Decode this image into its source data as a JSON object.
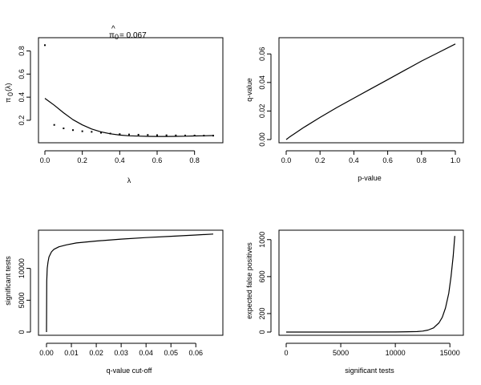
{
  "chart_data": [
    {
      "id": "pi0",
      "type": "scatter+line",
      "title": "π̂0 = 0.067",
      "title_parts": {
        "symbol": "π",
        "hat": "^",
        "subscript": "0",
        "value_text": "= 0.067"
      },
      "xlabel": "λ",
      "ylabel": "π 0(λ)",
      "ylabel_parts": {
        "base": "π",
        "subscript": "0",
        "suffix": "(λ)"
      },
      "xlim": [
        0,
        0.9
      ],
      "ylim": [
        0.04,
        0.88
      ],
      "xticks": [
        0,
        0.2,
        0.4,
        0.6,
        0.8
      ],
      "xtick_labels": [
        "0.0",
        "0.2",
        "0.4",
        "0.6",
        "0.8"
      ],
      "yticks": [
        0.2,
        0.4,
        0.6,
        0.8
      ],
      "ytick_labels": [
        "0.2",
        "0.4",
        "0.6",
        "0.8"
      ],
      "series": [
        {
          "name": "pi0 estimates",
          "kind": "points",
          "x": [
            0.0,
            0.05,
            0.1,
            0.15,
            0.2,
            0.25,
            0.3,
            0.35,
            0.4,
            0.45,
            0.5,
            0.55,
            0.6,
            0.65,
            0.7,
            0.75,
            0.8,
            0.85,
            0.9
          ],
          "y": [
            0.85,
            0.16,
            0.13,
            0.115,
            0.105,
            0.1,
            0.092,
            0.085,
            0.08,
            0.077,
            0.075,
            0.073,
            0.071,
            0.07,
            0.069,
            0.068,
            0.068,
            0.067,
            0.067
          ]
        },
        {
          "name": "smoother",
          "kind": "line",
          "x": [
            0.0,
            0.05,
            0.1,
            0.15,
            0.2,
            0.25,
            0.3,
            0.35,
            0.4,
            0.45,
            0.5,
            0.55,
            0.6,
            0.65,
            0.7,
            0.75,
            0.8,
            0.85,
            0.9
          ],
          "y": [
            0.39,
            0.33,
            0.265,
            0.205,
            0.16,
            0.125,
            0.1,
            0.083,
            0.072,
            0.066,
            0.063,
            0.061,
            0.06,
            0.06,
            0.061,
            0.062,
            0.064,
            0.066,
            0.068
          ]
        }
      ]
    },
    {
      "id": "qvalue-vs-pvalue",
      "type": "line",
      "title": "",
      "xlabel": "p-value",
      "ylabel": "q-value",
      "xlim": [
        0,
        1
      ],
      "ylim": [
        0,
        0.068
      ],
      "xticks": [
        0,
        0.2,
        0.4,
        0.6,
        0.8,
        1.0
      ],
      "xtick_labels": [
        "0.0",
        "0.2",
        "0.4",
        "0.6",
        "0.8",
        "1.0"
      ],
      "yticks": [
        0,
        0.02,
        0.04,
        0.06
      ],
      "ytick_labels": [
        "0.00",
        "0.02",
        "0.04",
        "0.06"
      ],
      "series": [
        {
          "name": "q-value",
          "x": [
            0,
            0.02,
            0.05,
            0.1,
            0.2,
            0.3,
            0.4,
            0.5,
            0.6,
            0.7,
            0.8,
            0.9,
            1.0
          ],
          "y": [
            0,
            0.0018,
            0.0042,
            0.0082,
            0.0155,
            0.0225,
            0.029,
            0.0355,
            0.042,
            0.0485,
            0.055,
            0.061,
            0.067
          ]
        }
      ]
    },
    {
      "id": "significant-vs-qcutoff",
      "type": "line",
      "title": "",
      "xlabel": "q-value cut-off",
      "ylabel": "significant tests",
      "xlim": [
        0,
        0.067
      ],
      "ylim": [
        0,
        15500
      ],
      "xticks": [
        0,
        0.01,
        0.02,
        0.03,
        0.04,
        0.05,
        0.06
      ],
      "xtick_labels": [
        "0.00",
        "0.01",
        "0.02",
        "0.03",
        "0.04",
        "0.05",
        "0.06"
      ],
      "yticks": [
        0,
        5000,
        10000
      ],
      "ytick_labels": [
        "0",
        "5000",
        "10000"
      ],
      "series": [
        {
          "name": "significant tests",
          "x": [
            0,
            0.0001,
            0.0003,
            0.0006,
            0.001,
            0.002,
            0.003,
            0.005,
            0.008,
            0.012,
            0.02,
            0.03,
            0.04,
            0.05,
            0.06,
            0.067
          ],
          "y": [
            0,
            8000,
            10000,
            11000,
            11800,
            12600,
            13000,
            13400,
            13700,
            14000,
            14300,
            14600,
            14850,
            15050,
            15250,
            15400
          ]
        }
      ]
    },
    {
      "id": "false-positives-vs-significant",
      "type": "line",
      "title": "",
      "xlabel": "significant tests",
      "ylabel": "expected false positives",
      "xlim": [
        0,
        15500
      ],
      "ylim": [
        0,
        1050
      ],
      "xticks": [
        0,
        5000,
        10000,
        15000
      ],
      "xtick_labels": [
        "0",
        "5000",
        "10000",
        "15000"
      ],
      "yticks": [
        0,
        200,
        600,
        1000
      ],
      "ytick_labels": [
        "0",
        "200",
        "600",
        "1000"
      ],
      "series": [
        {
          "name": "expected false positives",
          "x": [
            0,
            5000,
            10000,
            12000,
            12500,
            13000,
            13500,
            14000,
            14300,
            14600,
            14900,
            15100,
            15300,
            15450
          ],
          "y": [
            0,
            0,
            0.5,
            5,
            10,
            22,
            45,
            100,
            160,
            260,
            420,
            600,
            820,
            1040
          ]
        }
      ]
    }
  ]
}
